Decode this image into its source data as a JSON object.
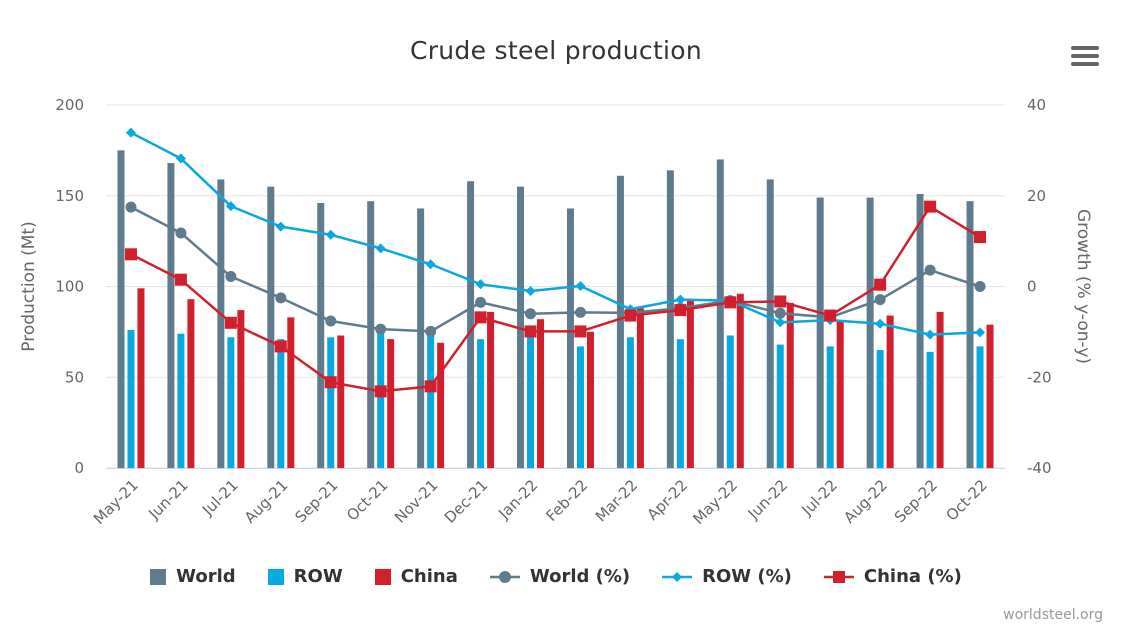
{
  "title": "Crude steel production",
  "credit": "worldsteel.org",
  "menu_icon": "hamburger-menu-icon",
  "colors": {
    "world": "#5f7b8e",
    "row": "#09a8e0",
    "china": "#d0202e",
    "grid": "#e6e6e6",
    "axis_text": "#666666"
  },
  "legend": [
    {
      "label": "World",
      "kind": "bar",
      "color": "#5f7b8e"
    },
    {
      "label": "ROW",
      "kind": "bar",
      "color": "#09a8e0"
    },
    {
      "label": "China",
      "kind": "bar",
      "color": "#d0202e"
    },
    {
      "label": "World (%)",
      "kind": "line-circle",
      "color": "#5f7b8e"
    },
    {
      "label": "ROW (%)",
      "kind": "line-diamond",
      "color": "#09a8e0"
    },
    {
      "label": "China (%)",
      "kind": "line-square",
      "color": "#d0202e"
    }
  ],
  "chart_data": {
    "type": "bar",
    "title": "Crude steel production",
    "ylabel": "Production (Mt)",
    "y2label": "Growth (% y-on-y)",
    "ylim": [
      0,
      200
    ],
    "y2lim": [
      -40,
      40
    ],
    "yticks": [
      0,
      50,
      100,
      150,
      200
    ],
    "y2ticks": [
      -40,
      -20,
      0,
      20,
      40
    ],
    "grid": true,
    "legend_position": "bottom",
    "categories": [
      "May-21",
      "Jun-21",
      "Jul-21",
      "Aug-21",
      "Sep-21",
      "Oct-21",
      "Nov-21",
      "Dec-21",
      "Jan-22",
      "Feb-22",
      "Mar-22",
      "Apr-22",
      "May-22",
      "Jun-22",
      "Jul-22",
      "Aug-22",
      "Sep-22",
      "Oct-22"
    ],
    "series": [
      {
        "name": "World",
        "type": "bar",
        "axis": "left",
        "values": [
          175,
          168,
          159,
          155,
          146,
          147,
          143,
          158,
          155,
          143,
          161,
          164,
          170,
          159,
          149,
          149,
          151,
          147
        ]
      },
      {
        "name": "ROW",
        "type": "bar",
        "axis": "left",
        "values": [
          76,
          74,
          72,
          71,
          72,
          75,
          73,
          71,
          73,
          67,
          72,
          71,
          73,
          68,
          67,
          65,
          64,
          67
        ]
      },
      {
        "name": "China",
        "type": "bar",
        "axis": "left",
        "values": [
          99,
          93,
          87,
          83,
          73,
          71,
          69,
          86,
          82,
          75,
          88,
          92,
          96,
          91,
          81,
          84,
          86,
          79
        ]
      },
      {
        "name": "World (%)",
        "type": "line",
        "marker": "circle",
        "axis": "right",
        "values": [
          17.5,
          11.8,
          2.2,
          -2.5,
          -7.6,
          -9.4,
          -9.9,
          -3.5,
          -6.0,
          -5.7,
          -5.8,
          -4.8,
          -3.1,
          -5.9,
          -6.8,
          -2.9,
          3.6,
          0.0
        ]
      },
      {
        "name": "ROW (%)",
        "type": "line",
        "marker": "diamond",
        "axis": "right",
        "values": [
          33.9,
          28.2,
          17.7,
          13.2,
          11.4,
          8.4,
          4.9,
          0.5,
          -1.0,
          0.1,
          -5.0,
          -2.9,
          -3.1,
          -7.9,
          -7.4,
          -8.2,
          -10.6,
          -10.1
        ]
      },
      {
        "name": "China (%)",
        "type": "line",
        "marker": "square",
        "axis": "right",
        "values": [
          7.1,
          1.5,
          -8.0,
          -13.2,
          -21.1,
          -23.1,
          -22.0,
          -6.8,
          -9.9,
          -9.9,
          -6.4,
          -5.2,
          -3.5,
          -3.3,
          -6.4,
          0.4,
          17.6,
          10.9
        ]
      }
    ]
  }
}
